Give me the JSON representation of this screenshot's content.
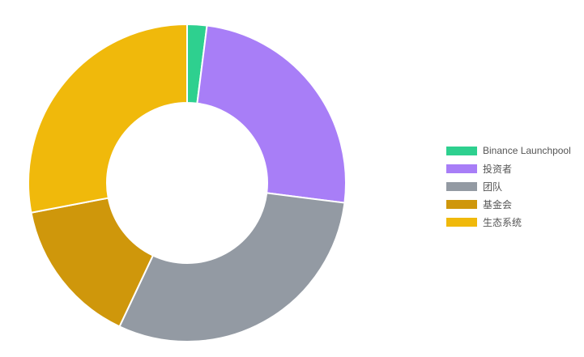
{
  "chart_data": {
    "type": "pie",
    "subtype": "doughnut",
    "title": "",
    "labels": [
      "Binance Launchpool",
      "投资者",
      "团队",
      "基金会",
      "生态系统"
    ],
    "values": [
      2,
      25,
      30,
      15,
      28
    ],
    "colors": [
      "#2ed08f",
      "#a87ef7",
      "#939aa3",
      "#cf970b",
      "#f0b90b"
    ],
    "legend_position": "right",
    "slice_border_color": "#ffffff"
  }
}
